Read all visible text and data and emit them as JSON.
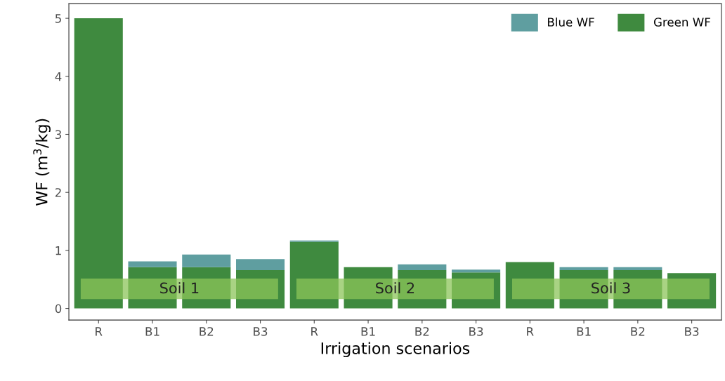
{
  "chart_data": {
    "type": "bar",
    "stacked": true,
    "xlabel": "Irrigation scenarios",
    "ylabel": "WF (m$^{3}$/kg)",
    "categories": [
      "R",
      "B1",
      "B2",
      "B3",
      "R",
      "B1",
      "B2",
      "B3",
      "R",
      "B1",
      "B2",
      "B3"
    ],
    "series": [
      {
        "name": "Green WF",
        "color": "#3f8a3f",
        "values": [
          5.0,
          0.71,
          0.71,
          0.66,
          1.15,
          0.71,
          0.66,
          0.62,
          0.8,
          0.66,
          0.66,
          0.61
        ]
      },
      {
        "name": "Blue WF",
        "color": "#5f9ea0",
        "values": [
          0,
          0.1,
          0.22,
          0.19,
          0.02,
          0,
          0.1,
          0.05,
          0,
          0.05,
          0.05,
          0
        ]
      }
    ],
    "ylim": [
      -0.2,
      5.25
    ],
    "yticks": [
      0,
      1,
      2,
      3,
      4,
      5
    ],
    "grid": false,
    "legend": "top right",
    "annotations": [
      "Soil 1",
      "Soil 2",
      "Soil 3"
    ]
  }
}
